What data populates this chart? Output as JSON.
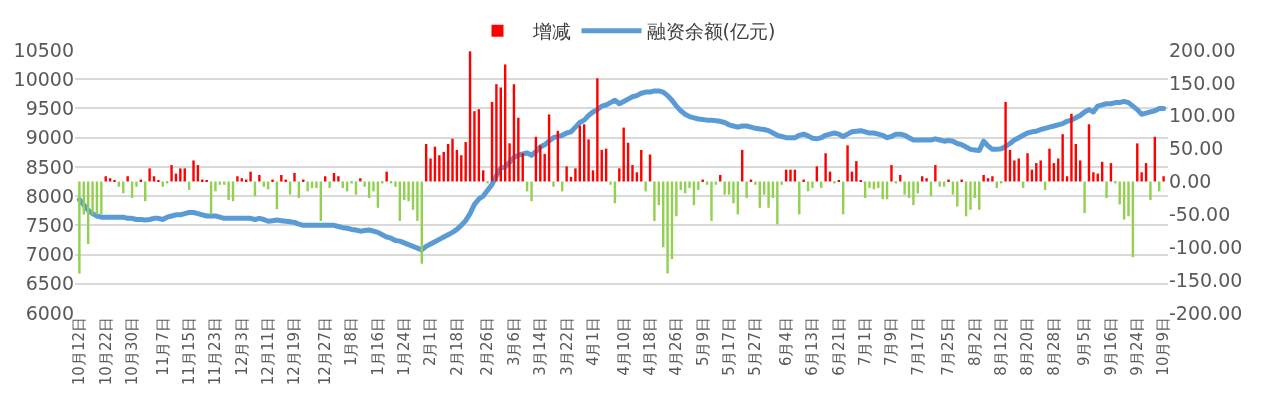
{
  "chart_data": {
    "type": "bar",
    "legend": "top",
    "grid": "y",
    "categories": [
      "10月12日",
      null,
      null,
      null,
      null,
      null,
      "10月22日",
      null,
      null,
      null,
      null,
      null,
      "10月30日",
      null,
      null,
      null,
      null,
      null,
      null,
      "11月7日",
      null,
      null,
      null,
      null,
      null,
      "11月15日",
      null,
      null,
      null,
      null,
      null,
      "11月23日",
      null,
      null,
      null,
      null,
      null,
      "12月3日",
      null,
      null,
      null,
      null,
      null,
      "12月11日",
      null,
      null,
      null,
      null,
      null,
      "12月19日",
      null,
      null,
      null,
      null,
      null,
      null,
      "12月27日",
      null,
      null,
      null,
      null,
      null,
      "1月8日",
      null,
      null,
      null,
      null,
      null,
      "1月16日",
      null,
      null,
      null,
      null,
      null,
      "1月24日",
      null,
      null,
      null,
      null,
      null,
      "2月1日",
      null,
      null,
      null,
      null,
      null,
      "2月18日",
      null,
      null,
      null,
      null,
      null,
      null,
      "2月26日",
      null,
      null,
      null,
      null,
      null,
      "3月6日",
      null,
      null,
      null,
      null,
      null,
      "3月14日",
      null,
      null,
      null,
      null,
      null,
      "3月22日",
      null,
      null,
      null,
      null,
      null,
      "4月1日",
      null,
      null,
      null,
      null,
      null,
      null,
      "4月10日",
      null,
      null,
      null,
      null,
      null,
      "4月18日",
      null,
      null,
      null,
      null,
      null,
      "4月26日",
      null,
      null,
      null,
      null,
      null,
      "5月9日",
      null,
      null,
      null,
      null,
      null,
      "5月17日",
      null,
      null,
      null,
      null,
      null,
      "5月27日",
      null,
      null,
      null,
      null,
      null,
      null,
      "6月4日",
      null,
      null,
      null,
      null,
      null,
      "6月13日",
      null,
      null,
      null,
      null,
      null,
      "6月21日",
      null,
      null,
      null,
      null,
      null,
      "7月1日",
      null,
      null,
      null,
      null,
      null,
      "7月9日",
      null,
      null,
      null,
      null,
      null,
      "7月17日",
      null,
      null,
      null,
      null,
      null,
      null,
      "7月25日",
      null,
      null,
      null,
      null,
      null,
      "8月2日",
      null,
      null,
      null,
      null,
      null,
      "8月12日",
      null,
      null,
      null,
      null,
      null,
      "8月20日",
      null,
      null,
      null,
      null,
      null,
      "8月28日",
      null,
      null,
      null,
      null,
      null,
      null,
      "9月5日",
      null,
      null,
      null,
      null,
      null,
      "9月16日",
      null,
      null,
      null,
      null,
      null,
      "9月24日",
      null,
      null,
      null,
      null,
      null,
      "10月9日"
    ],
    "series": [
      {
        "name": "增减",
        "axis": "y2",
        "color": "#ff0000",
        "colors": [
          "#92d050",
          "#92d050",
          "#92d050",
          "#92d050",
          "#92d050",
          "#92d050",
          "#ff0000",
          "#ff0000",
          "#ff0000",
          "#92d050",
          "#92d050",
          "#ff0000",
          "#92d050",
          "#92d050",
          "#ff0000",
          "#92d050",
          "#ff0000",
          "#ff0000",
          "#ff0000",
          "#92d050",
          "#92d050",
          "#ff0000",
          "#ff0000",
          "#ff0000",
          "#ff0000",
          "#92d050",
          "#ff0000",
          "#ff0000",
          "#ff0000",
          "#ff0000",
          "#92d050",
          "#92d050",
          "#92d050",
          "#92d050",
          "#92d050",
          "#92d050",
          "#ff0000",
          "#ff0000",
          "#ff0000",
          "#ff0000",
          "#92d050",
          "#ff0000",
          "#92d050",
          "#92d050",
          "#ff0000",
          "#92d050",
          "#ff0000",
          "#ff0000",
          "#92d050",
          "#ff0000",
          "#92d050",
          "#ff0000",
          "#92d050",
          "#92d050",
          "#92d050",
          "#92d050",
          "#ff0000",
          "#92d050",
          "#ff0000",
          "#ff0000",
          "#92d050",
          "#92d050",
          "#92d050",
          "#92d050",
          "#ff0000",
          "#92d050",
          "#92d050",
          "#92d050",
          "#92d050",
          "#92d050",
          "#ff0000",
          "#92d050",
          "#92d050",
          "#92d050",
          "#92d050",
          "#92d050",
          "#92d050",
          "#92d050",
          "#92d050",
          "#ff0000",
          "#ff0000",
          "#ff0000",
          "#ff0000",
          "#ff0000",
          "#ff0000",
          "#ff0000",
          "#ff0000",
          "#ff0000",
          "#ff0000",
          "#ff0000",
          "#ff0000",
          "#ff0000",
          "#ff0000",
          "#92d050",
          "#ff0000",
          "#ff0000",
          "#ff0000",
          "#ff0000",
          "#ff0000",
          "#ff0000",
          "#ff0000",
          "#ff0000",
          "#92d050",
          "#92d050",
          "#ff0000",
          "#ff0000",
          "#ff0000",
          "#ff0000",
          "#92d050",
          "#ff0000",
          "#92d050",
          "#ff0000",
          "#ff0000",
          "#ff0000",
          "#ff0000",
          "#ff0000",
          "#ff0000",
          "#ff0000",
          "#ff0000",
          "#ff0000",
          "#ff0000",
          "#92d050",
          "#92d050",
          "#ff0000",
          "#ff0000",
          "#ff0000",
          "#ff0000",
          "#ff0000",
          "#ff0000",
          "#92d050",
          "#ff0000",
          "#92d050",
          "#92d050",
          "#92d050",
          "#92d050",
          "#92d050",
          "#92d050",
          "#92d050",
          "#92d050",
          "#92d050",
          "#92d050",
          "#92d050",
          "#ff0000",
          "#92d050",
          "#92d050",
          "#92d050",
          "#ff0000",
          "#92d050",
          "#92d050",
          "#92d050",
          "#92d050",
          "#ff0000",
          "#92d050",
          "#ff0000",
          "#92d050",
          "#92d050",
          "#92d050",
          "#92d050",
          "#92d050",
          "#92d050",
          "#92d050",
          "#ff0000",
          "#ff0000",
          "#ff0000",
          "#92d050",
          "#ff0000",
          "#92d050",
          "#92d050",
          "#ff0000",
          "#92d050",
          "#ff0000",
          "#ff0000",
          "#92d050",
          "#ff0000",
          "#92d050",
          "#ff0000",
          "#ff0000",
          "#ff0000",
          "#ff0000",
          "#92d050",
          "#92d050",
          "#92d050",
          "#92d050",
          "#92d050",
          "#92d050",
          "#ff0000",
          "#92d050",
          "#ff0000",
          "#92d050",
          "#92d050",
          "#92d050",
          "#92d050",
          "#ff0000",
          "#ff0000",
          "#92d050",
          "#ff0000",
          "#92d050",
          "#92d050",
          "#ff0000",
          "#92d050",
          "#92d050",
          "#ff0000",
          "#92d050",
          "#92d050",
          "#92d050",
          "#92d050",
          "#ff0000",
          "#ff0000",
          "#ff0000",
          "#92d050",
          "#92d050",
          "#ff0000",
          "#ff0000",
          "#ff0000",
          "#ff0000",
          "#92d050",
          "#ff0000",
          "#ff0000",
          "#ff0000",
          "#ff0000",
          "#92d050",
          "#ff0000",
          "#ff0000",
          "#ff0000",
          "#ff0000",
          "#ff0000",
          "#ff0000",
          "#ff0000",
          "#ff0000",
          "#92d050",
          "#ff0000",
          "#ff0000",
          "#ff0000",
          "#ff0000",
          "#92d050",
          "#ff0000",
          "#92d050",
          "#92d050",
          "#92d050",
          "#92d050",
          "#92d050",
          "#ff0000",
          "#ff0000",
          "#ff0000",
          "#92d050",
          "#ff0000",
          "#92d050",
          "#ff0000"
        ],
        "values": [
          -140,
          -50,
          -95,
          -50,
          -50,
          -50,
          8,
          5,
          2,
          -8,
          -18,
          8,
          -25,
          -8,
          3,
          -30,
          20,
          8,
          2,
          -8,
          -3,
          25,
          12,
          20,
          20,
          -13,
          32,
          25,
          3,
          2,
          -50,
          -15,
          -5,
          -5,
          -28,
          -30,
          8,
          5,
          3,
          15,
          -22,
          10,
          -8,
          -12,
          3,
          -42,
          10,
          3,
          -20,
          13,
          -25,
          3,
          -15,
          -10,
          -10,
          -60,
          8,
          -10,
          13,
          8,
          -10,
          -15,
          -3,
          -20,
          5,
          -8,
          -25,
          -15,
          -40,
          -3,
          15,
          -3,
          -8,
          -60,
          -28,
          -30,
          -43,
          -60,
          -125,
          57,
          35,
          53,
          40,
          45,
          57,
          65,
          48,
          40,
          60,
          198,
          107,
          110,
          17,
          -3,
          121,
          148,
          143,
          178,
          58,
          148,
          97,
          43,
          -15,
          -30,
          68,
          55,
          42,
          102,
          -8,
          77,
          -15,
          23,
          7,
          20,
          85,
          87,
          64,
          17,
          157,
          48,
          50,
          -5,
          -33,
          20,
          82,
          59,
          25,
          14,
          48,
          -15,
          41,
          -60,
          -36,
          -100,
          -140,
          -118,
          -53,
          -13,
          -18,
          -10,
          -36,
          -13,
          3,
          -5,
          -60,
          -5,
          10,
          -20,
          -20,
          -33,
          -50,
          48,
          -25,
          3,
          -5,
          -40,
          -20,
          -40,
          -25,
          -65,
          -5,
          18,
          18,
          18,
          -50,
          3,
          -15,
          -10,
          23,
          -10,
          43,
          15,
          -3,
          2,
          -50,
          55,
          15,
          31,
          2,
          -25,
          -10,
          -12,
          -10,
          -27,
          -27,
          25,
          -3,
          10,
          -20,
          -25,
          -36,
          -18,
          8,
          5,
          -22,
          25,
          -8,
          -8,
          3,
          -20,
          -38,
          3,
          -53,
          -43,
          -25,
          -43,
          10,
          5,
          8,
          -10,
          -3,
          121,
          48,
          32,
          35,
          -10,
          43,
          18,
          28,
          32,
          -13,
          50,
          28,
          35,
          72,
          8,
          103,
          57,
          32,
          -48,
          87,
          14,
          12,
          30,
          -25,
          28,
          -3,
          -35,
          -58,
          -53,
          -115,
          58,
          14,
          28,
          -28,
          68,
          -15,
          8
        ]
      },
      {
        "name": "融资余额(亿元)",
        "type": "line",
        "color": "#5b9bd5",
        "values": [
          7940,
          7850,
          7760,
          7700,
          7660,
          7640,
          7640,
          7640,
          7640,
          7640,
          7640,
          7620,
          7620,
          7600,
          7600,
          7590,
          7600,
          7620,
          7620,
          7600,
          7640,
          7660,
          7680,
          7680,
          7700,
          7720,
          7720,
          7700,
          7680,
          7660,
          7660,
          7660,
          7640,
          7620,
          7620,
          7620,
          7620,
          7620,
          7620,
          7620,
          7600,
          7620,
          7600,
          7570,
          7580,
          7590,
          7580,
          7570,
          7560,
          7550,
          7520,
          7500,
          7500,
          7500,
          7500,
          7500,
          7500,
          7500,
          7500,
          7480,
          7460,
          7450,
          7430,
          7420,
          7400,
          7410,
          7420,
          7400,
          7380,
          7340,
          7300,
          7280,
          7240,
          7230,
          7200,
          7170,
          7140,
          7110,
          7080,
          7140,
          7180,
          7220,
          7260,
          7300,
          7340,
          7380,
          7430,
          7500,
          7580,
          7700,
          7860,
          7950,
          8000,
          8100,
          8200,
          8350,
          8480,
          8500,
          8580,
          8660,
          8700,
          8720,
          8740,
          8700,
          8760,
          8840,
          8880,
          8940,
          9000,
          9020,
          9040,
          9080,
          9100,
          9180,
          9260,
          9300,
          9380,
          9440,
          9480,
          9540,
          9560,
          9600,
          9640,
          9580,
          9620,
          9660,
          9700,
          9720,
          9760,
          9780,
          9780,
          9800,
          9800,
          9780,
          9720,
          9640,
          9540,
          9460,
          9400,
          9360,
          9340,
          9320,
          9310,
          9300,
          9300,
          9290,
          9280,
          9260,
          9220,
          9200,
          9180,
          9200,
          9200,
          9180,
          9160,
          9150,
          9140,
          9120,
          9080,
          9040,
          9020,
          9000,
          9000,
          9000,
          9040,
          9060,
          9030,
          8990,
          8980,
          9000,
          9040,
          9060,
          9080,
          9060,
          9020,
          9060,
          9100,
          9110,
          9120,
          9100,
          9080,
          9080,
          9060,
          9040,
          9000,
          9020,
          9060,
          9060,
          9040,
          9000,
          8960,
          8960,
          8960,
          8960,
          8960,
          8980,
          8960,
          8940,
          8950,
          8940,
          8900,
          8880,
          8840,
          8800,
          8790,
          8780,
          8940,
          8860,
          8800,
          8800,
          8810,
          8850,
          8900,
          8960,
          9000,
          9040,
          9080,
          9100,
          9110,
          9140,
          9160,
          9180,
          9200,
          9220,
          9240,
          9280,
          9300,
          9340,
          9380,
          9440,
          9480,
          9440,
          9540,
          9560,
          9580,
          9580,
          9600,
          9600,
          9620,
          9600,
          9540,
          9480,
          9400,
          9420,
          9440,
          9460,
          9500,
          9500
        ]
      }
    ],
    "ylim": [
      6000,
      10500
    ],
    "yticks": [
      6000,
      6500,
      7000,
      7500,
      8000,
      8500,
      9000,
      9500,
      10000,
      10500
    ],
    "y2lim": [
      -200,
      200
    ],
    "y2ticks": [
      {
        "value": -200,
        "label": "-200.00"
      },
      {
        "value": -150,
        "label": "-150.00"
      },
      {
        "value": -100,
        "label": "-100.00"
      },
      {
        "value": -50,
        "label": "-50.00"
      },
      {
        "value": 0,
        "label": "0.00"
      },
      {
        "value": 50,
        "label": "50.00"
      },
      {
        "value": 100,
        "label": "100.00"
      },
      {
        "value": 150,
        "label": "150.00"
      },
      {
        "value": 200,
        "label": "200.00"
      }
    ]
  }
}
